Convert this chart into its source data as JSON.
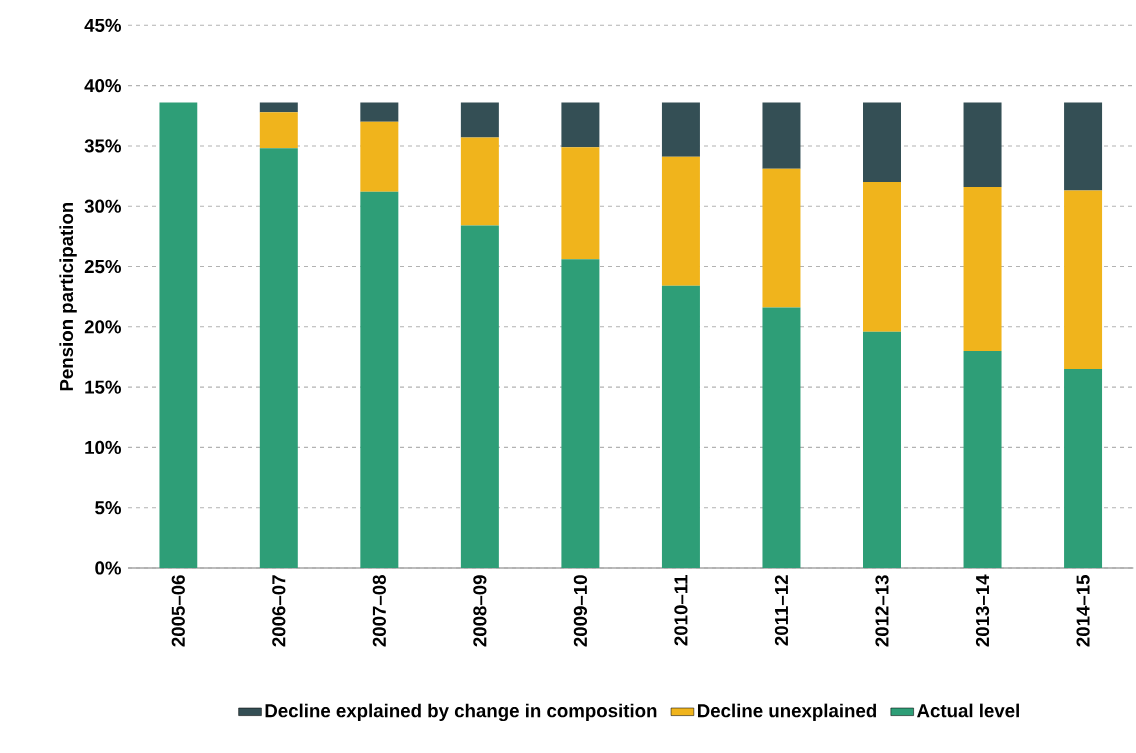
{
  "chart_data": {
    "type": "bar",
    "stacked": true,
    "ylabel": "Pension participation",
    "categories": [
      "2005–06",
      "2006–07",
      "2007–08",
      "2008–09",
      "2009–10",
      "2010–11",
      "2011–12",
      "2012–13",
      "2013–14",
      "2014–15"
    ],
    "series": [
      {
        "name": "Actual level",
        "color": "#2e9e77",
        "values": [
          38.6,
          34.8,
          31.2,
          28.4,
          25.6,
          23.4,
          21.6,
          19.6,
          18.0,
          16.5
        ]
      },
      {
        "name": "Decline unexplained",
        "color": "#f0b41c",
        "values": [
          0,
          3.0,
          5.8,
          7.3,
          9.3,
          10.7,
          11.5,
          12.4,
          13.6,
          14.8
        ]
      },
      {
        "name": "Decline explained by change in composition",
        "color": "#344f55",
        "values": [
          0,
          0.8,
          1.6,
          2.9,
          3.7,
          4.5,
          5.5,
          6.6,
          7.0,
          7.3
        ]
      }
    ],
    "ylim": [
      0,
      45
    ],
    "yticks": [
      {
        "value": 0,
        "label": "0%"
      },
      {
        "value": 5,
        "label": "5%"
      },
      {
        "value": 10,
        "label": "10%"
      },
      {
        "value": 15,
        "label": "15%"
      },
      {
        "value": 20,
        "label": "20%"
      },
      {
        "value": 25,
        "label": "25%"
      },
      {
        "value": 30,
        "label": "30%"
      },
      {
        "value": 35,
        "label": "35%"
      },
      {
        "value": 40,
        "label": "40%"
      },
      {
        "value": 45,
        "label": "45%"
      }
    ],
    "grid": "y",
    "legend": "bottom"
  }
}
